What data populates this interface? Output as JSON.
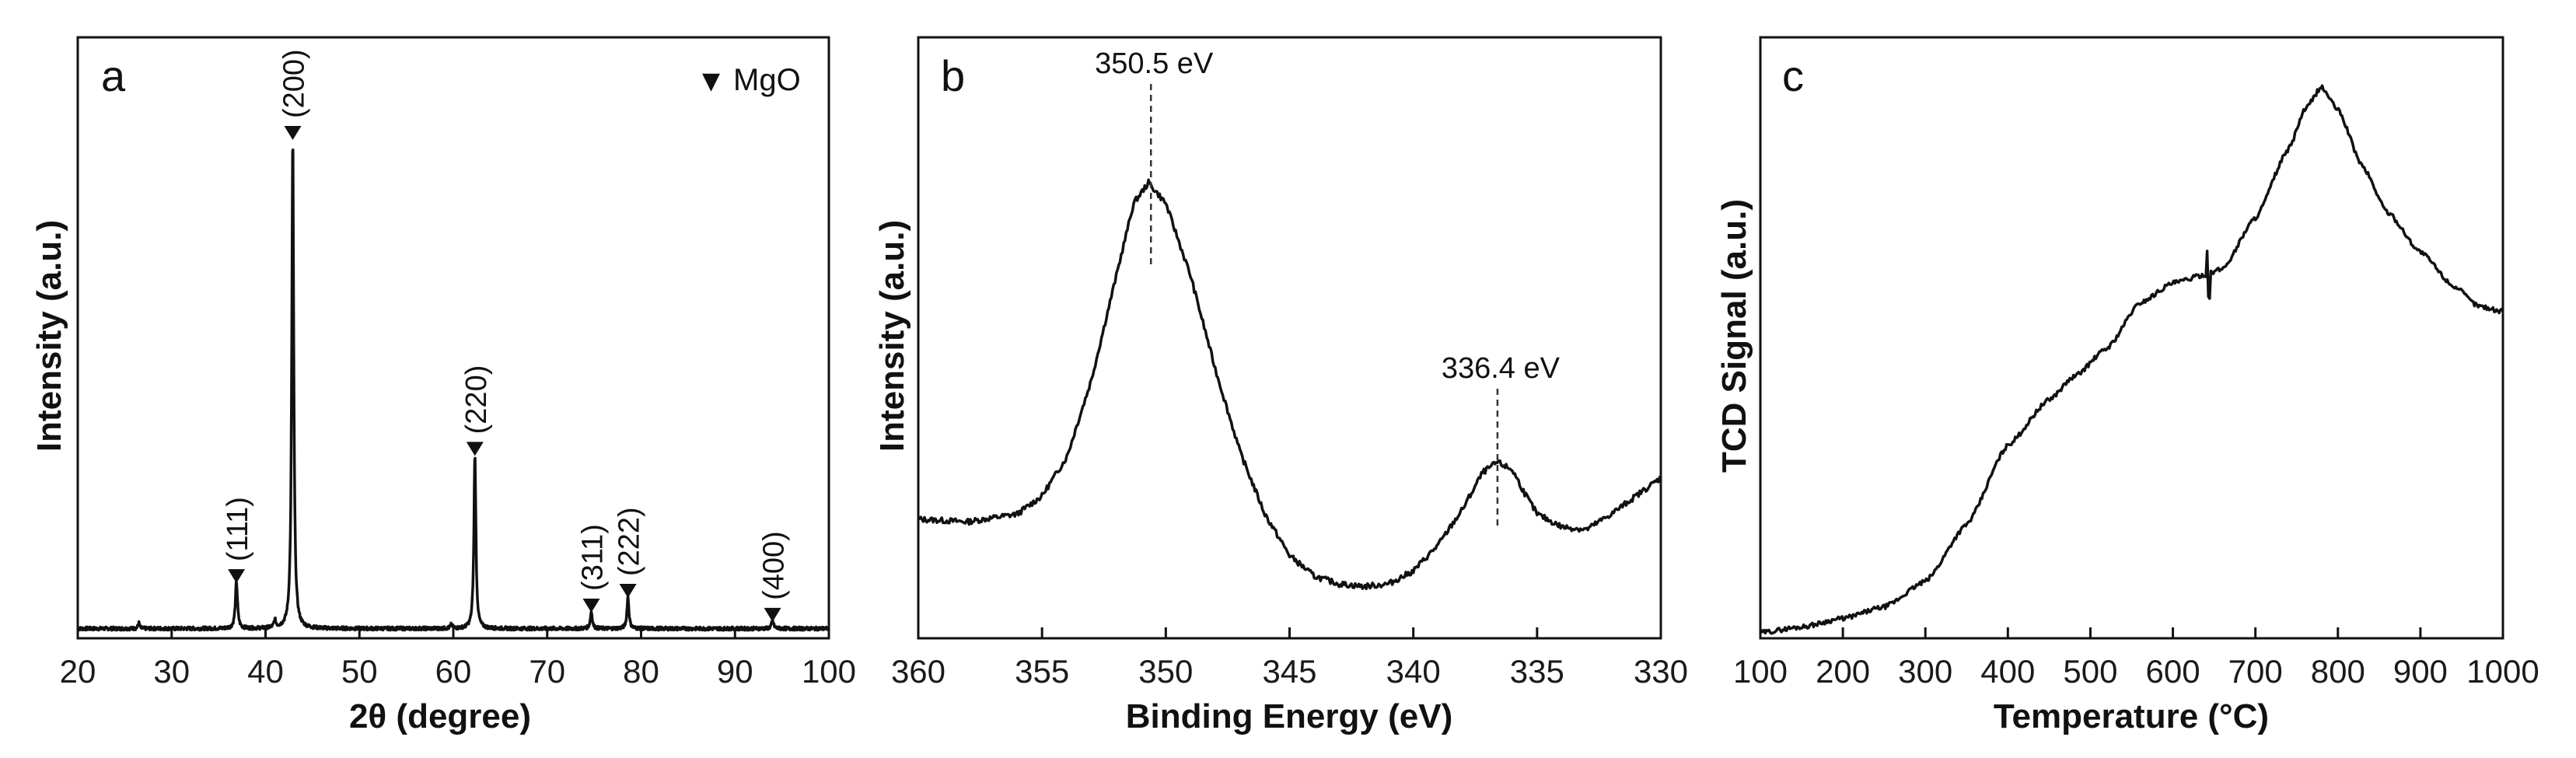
{
  "chart_data": [
    {
      "id": "a",
      "type": "line",
      "panel_label": "a",
      "xlabel": "2θ (degree)",
      "ylabel": "Intensity (a.u.)",
      "xlim": [
        20,
        100
      ],
      "ylim": [
        0,
        100
      ],
      "x_ticks": [
        "20",
        "30",
        "40",
        "50",
        "60",
        "70",
        "80",
        "90",
        "100"
      ],
      "y_ticks_shown": false,
      "legend": {
        "marker": "▼",
        "label": "MgO",
        "placement": "top-right"
      },
      "baseline": 1.5,
      "peaks": [
        {
          "x": 36.9,
          "height": 9.5,
          "width": 0.22,
          "label": "(111)"
        },
        {
          "x": 42.9,
          "height": 100,
          "width": 0.2,
          "label": "(200)"
        },
        {
          "x": 62.3,
          "height": 35.5,
          "width": 0.2,
          "label": "(220)"
        },
        {
          "x": 74.7,
          "height": 3.5,
          "width": 0.2,
          "label": "(311)"
        },
        {
          "x": 78.6,
          "height": 6.5,
          "width": 0.2,
          "label": "(222)"
        },
        {
          "x": 94.0,
          "height": 1.6,
          "width": 0.22,
          "label": "(400)"
        }
      ],
      "minor_peaks": [
        {
          "x": 26.5,
          "height": 1.2,
          "width": 0.15
        },
        {
          "x": 41.0,
          "height": 1.5,
          "width": 0.2
        },
        {
          "x": 59.8,
          "height": 0.8,
          "width": 0.2
        }
      ]
    },
    {
      "id": "b",
      "type": "line",
      "panel_label": "b",
      "xlabel": "Binding Energy (eV)",
      "ylabel": "Intensity (a.u.)",
      "xlim": [
        360,
        330
      ],
      "x_reversed": true,
      "ylim": [
        0,
        100
      ],
      "x_ticks": [
        "360",
        "355",
        "350",
        "345",
        "340",
        "335",
        "330"
      ],
      "y_ticks_shown": false,
      "points": [
        [
          360,
          23
        ],
        [
          358,
          22.5
        ],
        [
          356,
          24
        ],
        [
          355,
          27.5
        ],
        [
          354,
          35
        ],
        [
          353,
          50
        ],
        [
          352,
          70
        ],
        [
          351.3,
          84
        ],
        [
          350.7,
          88
        ],
        [
          350,
          84
        ],
        [
          349,
          70
        ],
        [
          348,
          52
        ],
        [
          347,
          36
        ],
        [
          346,
          24
        ],
        [
          345,
          16
        ],
        [
          344,
          12
        ],
        [
          343,
          10.5
        ],
        [
          342,
          10
        ],
        [
          341,
          10.5
        ],
        [
          340,
          13
        ],
        [
          339,
          18
        ],
        [
          338,
          25
        ],
        [
          337.2,
          32
        ],
        [
          336.6,
          34
        ],
        [
          336,
          32.5
        ],
        [
          335.5,
          28
        ],
        [
          335,
          24
        ],
        [
          334,
          21.5
        ],
        [
          333,
          21
        ],
        [
          332,
          24
        ],
        [
          331,
          27.5
        ],
        [
          330,
          31
        ]
      ],
      "annotations": [
        {
          "text": "350.5 eV",
          "x": 350.6
        },
        {
          "text": "336.4 eV",
          "x": 336.6
        }
      ]
    },
    {
      "id": "c",
      "type": "line",
      "panel_label": "c",
      "xlabel": "Temperature (°C)",
      "ylabel": "TCD Signal (a.u.)",
      "xlim": [
        100,
        1000
      ],
      "ylim": [
        0,
        100
      ],
      "x_ticks": [
        "100",
        "200",
        "300",
        "400",
        "500",
        "600",
        "700",
        "800",
        "900",
        "1000"
      ],
      "y_ticks_shown": false,
      "points": [
        [
          100,
          1
        ],
        [
          150,
          2
        ],
        [
          200,
          3.5
        ],
        [
          250,
          5.5
        ],
        [
          300,
          10
        ],
        [
          350,
          20
        ],
        [
          400,
          34
        ],
        [
          450,
          42
        ],
        [
          480,
          46
        ],
        [
          520,
          51
        ],
        [
          560,
          59
        ],
        [
          600,
          62.5
        ],
        [
          640,
          64
        ],
        [
          660,
          65
        ],
        [
          700,
          74
        ],
        [
          740,
          86
        ],
        [
          760,
          93
        ],
        [
          780,
          97
        ],
        [
          800,
          93
        ],
        [
          830,
          83
        ],
        [
          860,
          75
        ],
        [
          900,
          68
        ],
        [
          940,
          62
        ],
        [
          970,
          58.5
        ],
        [
          1000,
          57.5
        ]
      ],
      "spike": {
        "x": 643,
        "amplitude": 4
      }
    }
  ]
}
